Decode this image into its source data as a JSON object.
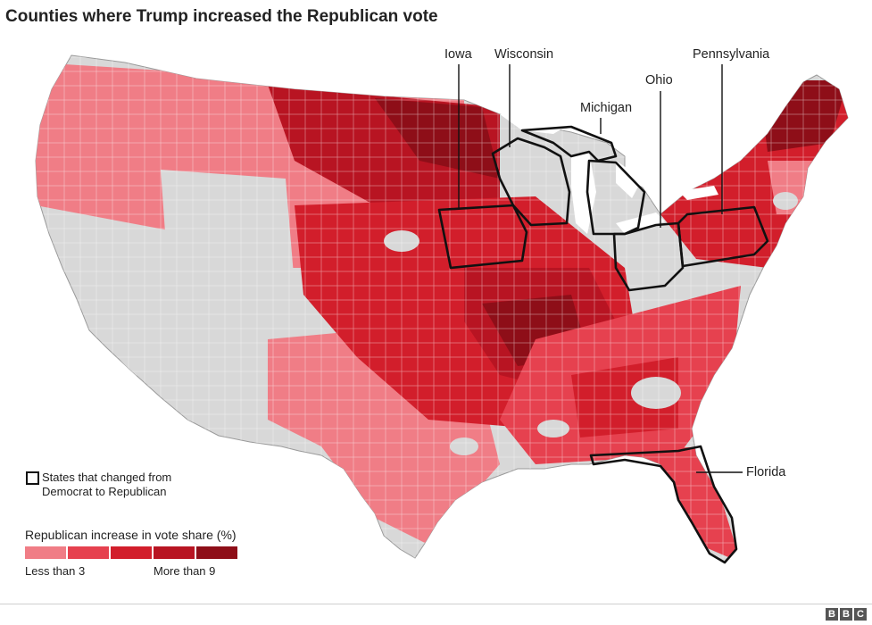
{
  "title": "Counties where Trump increased the Republican vote",
  "labels": {
    "iowa": "Iowa",
    "wisconsin": "Wisconsin",
    "michigan": "Michigan",
    "ohio": "Ohio",
    "pennsylvania": "Pennsylvania",
    "florida": "Florida"
  },
  "legend": {
    "flipped_text_line1": "States that changed from",
    "flipped_text_line2": "Democrat to Republican",
    "scale_title": "Republican increase in vote share (%)",
    "scale_low": "Less than 3",
    "scale_high": "More than 9",
    "scale_colors": [
      "#f07d86",
      "#e6414f",
      "#d21e2b",
      "#b81422",
      "#8e0e18"
    ]
  },
  "colors": {
    "no_increase": "#d8d8d8",
    "border": "#111111"
  },
  "logo": [
    "B",
    "B",
    "C"
  ]
}
